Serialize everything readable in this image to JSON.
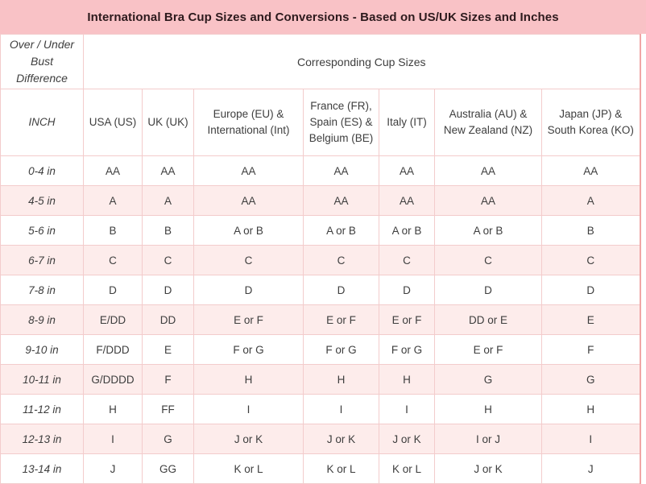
{
  "title": "International Bra Cup Sizes and Conversions - Based on US/UK Sizes and Inches",
  "table": {
    "corner_header": "Over / Under Bust Difference",
    "merged_header": "Corresponding Cup Sizes",
    "columns": [
      "INCH",
      "USA (US)",
      "UK (UK)",
      "Europe (EU) & International (Int)",
      "France (FR), Spain (ES) & Belgium (BE)",
      "Italy (IT)",
      "Australia (AU) & New Zealand (NZ)",
      "Japan (JP) & South Korea (KO)"
    ],
    "rows": [
      {
        "inch": "0-4 in",
        "cells": [
          "AA",
          "AA",
          "AA",
          "AA",
          "AA",
          "AA",
          "AA"
        ]
      },
      {
        "inch": "4-5 in",
        "cells": [
          "A",
          "A",
          "AA",
          "AA",
          "AA",
          "AA",
          "A"
        ]
      },
      {
        "inch": "5-6 in",
        "cells": [
          "B",
          "B",
          "A or B",
          "A or B",
          "A or B",
          "A or B",
          "B"
        ]
      },
      {
        "inch": "6-7 in",
        "cells": [
          "C",
          "C",
          "C",
          "C",
          "C",
          "C",
          "C"
        ]
      },
      {
        "inch": "7-8 in",
        "cells": [
          "D",
          "D",
          "D",
          "D",
          "D",
          "D",
          "D"
        ]
      },
      {
        "inch": "8-9 in",
        "cells": [
          "E/DD",
          "DD",
          "E or F",
          "E or F",
          "E or F",
          "DD or E",
          "E"
        ]
      },
      {
        "inch": "9-10 in",
        "cells": [
          "F/DDD",
          "E",
          "F or G",
          "F or G",
          "F or G",
          "E or F",
          "F"
        ]
      },
      {
        "inch": "10-11 in",
        "cells": [
          "G/DDDD",
          "F",
          "H",
          "H",
          "H",
          "G",
          "G"
        ]
      },
      {
        "inch": "11-12 in",
        "cells": [
          "H",
          "FF",
          "I",
          "I",
          "I",
          "H",
          "H"
        ]
      },
      {
        "inch": "12-13 in",
        "cells": [
          "I",
          "G",
          "J or K",
          "J or K",
          "J or K",
          "I or J",
          "I"
        ]
      },
      {
        "inch": "13-14 in",
        "cells": [
          "J",
          "GG",
          "K or L",
          "K or L",
          "K or L",
          "J or K",
          "J"
        ]
      }
    ]
  },
  "colors": {
    "accent": "#f9c2c6",
    "row_pink": "#fdeceb",
    "border": "#f3cccc",
    "border_strong": "#f0a6a6",
    "title_text": "#2d1a1d",
    "body_text": "#3e3e3e"
  }
}
